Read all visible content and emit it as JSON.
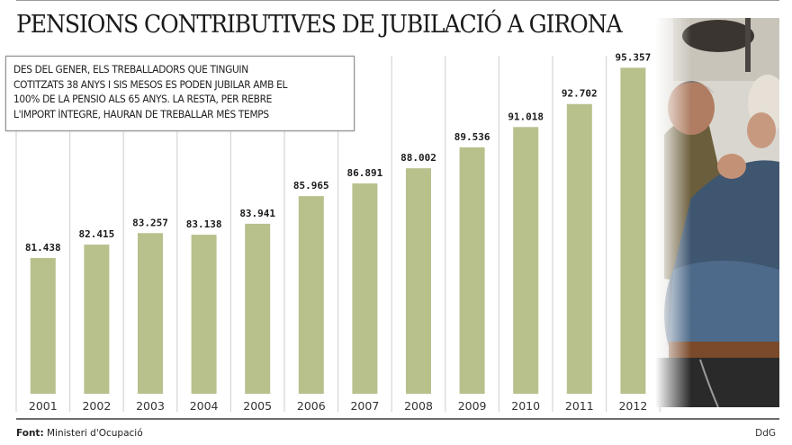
{
  "chart_data": {
    "type": "bar",
    "title": "PENSIONS CONTRIBUTIVES DE JUBILACIÓ A GIRONA",
    "categories": [
      "2001",
      "2002",
      "2003",
      "2004",
      "2005",
      "2006",
      "2007",
      "2008",
      "2009",
      "2010",
      "2011",
      "2012"
    ],
    "values": [
      81.438,
      82.415,
      83.257,
      83.138,
      83.941,
      85.965,
      86.891,
      88.002,
      89.536,
      91.018,
      92.702,
      95.357
    ],
    "value_labels": [
      "81.438",
      "82.415",
      "83.257",
      "83.138",
      "83.941",
      "85.965",
      "86.891",
      "88.002",
      "89.536",
      "91.018",
      "92.702",
      "95.357"
    ],
    "xlabel": "",
    "ylabel": "",
    "ylim": [
      71.5,
      99
    ],
    "grid": "vertical-separators",
    "bar_color": "#b8c08c",
    "annotation": [
      "DES DEL GENER, ELS TREBALLADORS QUE TINGUIN",
      "COTITZATS 38 ANYS I SIS MESOS ES PODEN JUBILAR AMB EL",
      "100% DE LA PENSIÓ ALS 65 ANYS. LA RESTA, PER REBRE",
      "L'IMPORT ÍNTEGRE, HAURAN DE TREBALLAR MÉS TEMPS"
    ]
  },
  "footer": {
    "source_label": "Font:",
    "source_value": " Ministeri d'Ocupació",
    "credit": "DdG"
  }
}
